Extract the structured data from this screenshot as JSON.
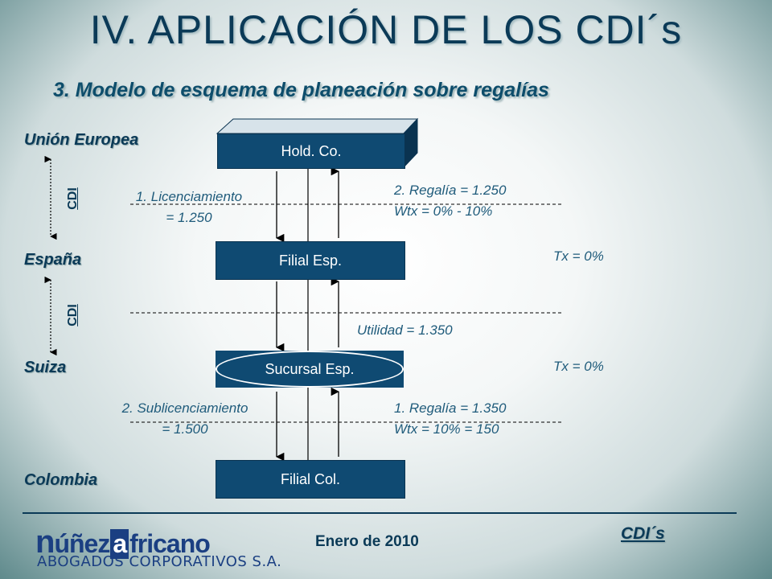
{
  "title": "IV. APLICACIÓN DE LOS CDI´s",
  "subtitle": "3. Modelo de esquema de planeación sobre regalías",
  "regions": {
    "eu": "Unión Europea",
    "es": "España",
    "ch": "Suiza",
    "co": "Colombia"
  },
  "cdi_labels": [
    "CDI",
    "CDI"
  ],
  "boxes": {
    "hold": "Hold. Co.",
    "filial_esp": "Filial Esp.",
    "sucursal": "Sucursal Esp.",
    "filial_col": "Filial Col."
  },
  "flows": {
    "licenciamiento_1": "1. Licenciamiento",
    "licenciamiento_2": "= 1.250",
    "regalia2_1": "2. Regalía  = 1.250",
    "regalia2_2": "Wtx = 0% - 10%",
    "utilidad": "Utilidad = 1.350",
    "sublic_1": "2. Sublicenciamiento",
    "sublic_2": "= 1.500",
    "regalia1_1": "1. Regalía   = 1.350",
    "regalia1_2": "Wtx = 10% = 150"
  },
  "tax": {
    "espana": "Tx = 0%",
    "suiza": "Tx = 0%"
  },
  "footer": {
    "logo_part1": "n",
    "logo_part2": "úñez",
    "logo_part3": "a",
    "logo_part4": "fricano",
    "logo_sub": "ABOGADOS CORPORATIVOS S.A.",
    "date": "Enero de 2010",
    "right": "CDI´s"
  },
  "colors": {
    "dark_blue": "#0f4a72",
    "text_blue": "#0b3a57",
    "label_blue": "#1f5b7b"
  }
}
